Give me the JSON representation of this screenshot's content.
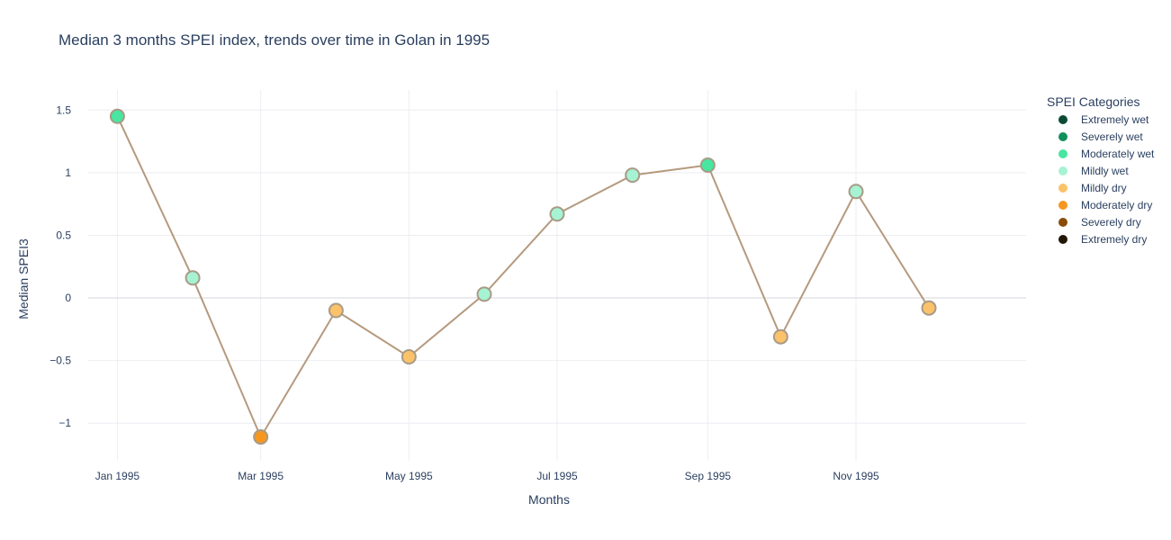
{
  "chart_data": {
    "type": "line",
    "title": "Median 3 months SPEI index, trends over time in Golan in 1995",
    "xlabel": "Months",
    "ylabel": "Median SPEI3",
    "x": [
      "1995-01-01",
      "1995-02-01",
      "1995-03-01",
      "1995-04-01",
      "1995-05-01",
      "1995-06-01",
      "1995-07-01",
      "1995-08-01",
      "1995-09-01",
      "1995-10-01",
      "1995-11-01",
      "1995-12-01"
    ],
    "values": [
      1.45,
      0.16,
      -1.11,
      -0.1,
      -0.47,
      0.03,
      0.67,
      0.98,
      1.06,
      -0.31,
      0.85,
      -0.08
    ],
    "point_categories": [
      "Moderately wet",
      "Mildly wet",
      "Moderately dry",
      "Mildly dry",
      "Mildly dry",
      "Mildly wet",
      "Mildly wet",
      "Mildly wet",
      "Moderately wet",
      "Mildly dry",
      "Mildly wet",
      "Mildly dry"
    ],
    "x_ticks": [
      {
        "date": "1995-01-01",
        "label": "Jan 1995"
      },
      {
        "date": "1995-03-01",
        "label": "Mar 1995"
      },
      {
        "date": "1995-05-01",
        "label": "May 1995"
      },
      {
        "date": "1995-07-01",
        "label": "Jul 1995"
      },
      {
        "date": "1995-09-01",
        "label": "Sep 1995"
      },
      {
        "date": "1995-11-01",
        "label": "Nov 1995"
      }
    ],
    "y_ticks": [
      {
        "value": 1.5,
        "label": "1.5"
      },
      {
        "value": 1,
        "label": "1"
      },
      {
        "value": 0.5,
        "label": "0.5"
      },
      {
        "value": 0,
        "label": "0"
      },
      {
        "value": -0.5,
        "label": "−0.5"
      },
      {
        "value": -1,
        "label": "−1"
      }
    ],
    "xlim": [
      "1994-12-20",
      "1996-01-10"
    ],
    "ylim": [
      -1.3,
      1.66
    ],
    "grid": true,
    "line_color": "#b59a7e",
    "marker_outline_color": "#a89b86",
    "legend": {
      "title": "SPEI Categories",
      "placement": "top-right",
      "items": [
        {
          "label": "Extremely wet",
          "color": "#0b4a36"
        },
        {
          "label": "Severely wet",
          "color": "#11905d"
        },
        {
          "label": "Moderately wet",
          "color": "#48e6a0"
        },
        {
          "label": "Mildly wet",
          "color": "#a6f3d3"
        },
        {
          "label": "Mildly dry",
          "color": "#fbc26a"
        },
        {
          "label": "Moderately dry",
          "color": "#f7971f"
        },
        {
          "label": "Severely dry",
          "color": "#8a4c0b"
        },
        {
          "label": "Extremely dry",
          "color": "#241607"
        }
      ]
    }
  }
}
